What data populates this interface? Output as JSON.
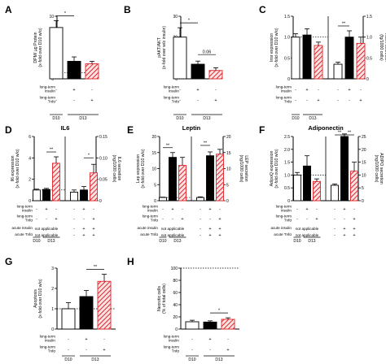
{
  "figure_label": "Figure",
  "colors": {
    "white_bar": "#ffffff",
    "black_bar": "#000000",
    "hatch": "#e3242b",
    "hatch_bg": "#fbe3e3"
  },
  "chart_data": [
    {
      "id": "A",
      "type": "bar",
      "panel_letter": "A",
      "title": "",
      "ylabel": "DPM/ µg Protein\n(x-fold over D10 w/o)",
      "ylim": [
        0,
        10
      ],
      "yticks": [
        0,
        2,
        4,
        6,
        8,
        10
      ],
      "bars": [
        {
          "style": "white",
          "value": 8.2,
          "err": 1.1
        },
        {
          "style": "black",
          "value": 2.8,
          "err": 0.7
        },
        {
          "style": "hatch",
          "value": 2.4,
          "err": 0.4
        }
      ],
      "ref_line": 1,
      "sig": [
        {
          "from": 0,
          "to": 1,
          "label": "*"
        }
      ],
      "rows": [
        {
          "label": "long-term\ninsulin",
          "marks": [
            "-",
            "+",
            "-"
          ]
        },
        {
          "label": "long-term\nTnfα",
          "marks": [
            "-",
            "-",
            "+"
          ]
        }
      ],
      "groups": [
        {
          "label": "D10",
          "bars": [
            0
          ]
        },
        {
          "label": "D13",
          "bars": [
            1,
            2
          ]
        }
      ]
    },
    {
      "id": "B",
      "type": "bar",
      "panel_letter": "B",
      "title": "",
      "ylabel": "pAKT/AKT\n(x-fold over w/o insulin)",
      "ylim": [
        0,
        30
      ],
      "yticks": [
        0,
        10,
        20,
        30
      ],
      "bars": [
        {
          "style": "white",
          "value": 20,
          "err": 4.5
        },
        {
          "style": "black",
          "value": 7,
          "err": 1.5
        },
        {
          "style": "hatch",
          "value": 4,
          "err": 1.3
        }
      ],
      "ref_line": null,
      "sig": [
        {
          "from": 0,
          "to": 1,
          "label": "*"
        },
        {
          "from": 1,
          "to": 2,
          "label": "0.06"
        }
      ],
      "rows": [
        {
          "label": "long-term\ninsulin",
          "marks": [
            "-",
            "+",
            "-"
          ]
        },
        {
          "label": "long-term\nTnfα",
          "marks": [
            "-",
            "-",
            "+"
          ]
        }
      ],
      "groups": [
        {
          "label": "D10",
          "bars": [
            0
          ]
        },
        {
          "label": "D13",
          "bars": [
            1,
            2
          ]
        }
      ]
    },
    {
      "id": "C",
      "type": "bar",
      "panel_letter": "C",
      "title": "",
      "ylabel": "Insr expression\n(x-fold over D10 w/o)",
      "y2label": "INSR secretion\n(fg/1000 cells)",
      "ylim": [
        0,
        1.5
      ],
      "yticks": [
        0,
        0.5,
        1.0,
        1.5
      ],
      "y2lim": [
        0,
        1.5
      ],
      "y2ticks": [
        0,
        0.5,
        1.0,
        1.5
      ],
      "divider": true,
      "bars": [
        {
          "style": "white",
          "value": 1.0,
          "err": 0.08
        },
        {
          "style": "black",
          "value": 1.05,
          "err": 0.15
        },
        {
          "style": "hatch",
          "value": 0.8,
          "err": 0.08
        },
        {
          "style": "white",
          "value": 0.35,
          "err": 0.05,
          "axis": "right"
        },
        {
          "style": "black",
          "value": 1.0,
          "err": 0.15,
          "axis": "right"
        },
        {
          "style": "hatch",
          "value": 0.85,
          "err": 0.15,
          "axis": "right"
        }
      ],
      "ref_line": 1,
      "sig": [
        {
          "from": 3,
          "to": 4,
          "label": "**"
        }
      ],
      "rows": [
        {
          "label": "long-term\ninsulin",
          "marks": [
            "-",
            "+",
            "-",
            "-",
            "+",
            "-"
          ]
        },
        {
          "label": "long-term\nTnfα",
          "marks": [
            "-",
            "-",
            "+",
            "-",
            "-",
            "+"
          ]
        }
      ],
      "groups": [
        {
          "label": "D10",
          "bars": [
            0
          ]
        },
        {
          "label": "D13",
          "bars": [
            1,
            2
          ]
        }
      ]
    },
    {
      "id": "D",
      "type": "bar",
      "panel_letter": "D",
      "title": "IL6",
      "ylabel": "Il6 expression\n(x-fold over D10 w/o)",
      "y2label": "IL6 secretion\n(ng/1000 cells)",
      "ylim": [
        0,
        6
      ],
      "yticks": [
        0,
        2,
        4,
        6
      ],
      "y2lim": [
        0,
        0.15
      ],
      "y2ticks": [
        0,
        0.05,
        0.1,
        0.15
      ],
      "divider": true,
      "bars": [
        {
          "style": "white",
          "value": 1.0,
          "err": 0.08
        },
        {
          "style": "black",
          "value": 1.05,
          "err": 0.1
        },
        {
          "style": "hatch",
          "value": 3.5,
          "err": 0.6
        },
        {
          "style": "white",
          "value": 0.02,
          "err": 0.005,
          "axis": "right"
        },
        {
          "style": "black",
          "value": 0.025,
          "err": 0.008,
          "axis": "right"
        },
        {
          "style": "hatch",
          "value": 0.065,
          "err": 0.02,
          "axis": "right"
        }
      ],
      "ref_line": 1,
      "sig": [
        {
          "from": 1,
          "to": 2,
          "label": "**"
        },
        {
          "from": 4,
          "to": 5,
          "label": "*"
        }
      ],
      "rows": [
        {
          "label": "long-term\ninsulin",
          "marks": [
            "-",
            "+",
            "-",
            "-",
            "+",
            "-"
          ]
        },
        {
          "label": "long-term\nTnfα",
          "marks": [
            "-",
            "-",
            "+",
            "-",
            "-",
            "+"
          ]
        },
        {
          "label": "acute insulin",
          "marks": [
            "na",
            "",
            "",
            "-",
            "+",
            "+"
          ]
        },
        {
          "label": "acute Tnfα",
          "marks": [
            "na",
            "",
            "",
            "-",
            "+",
            "+"
          ]
        }
      ],
      "na_text": "not applicable",
      "groups": [
        {
          "label": "D10",
          "bars": [
            0
          ]
        },
        {
          "label": "D13",
          "bars": [
            1,
            2
          ]
        }
      ]
    },
    {
      "id": "E",
      "type": "bar",
      "panel_letter": "E",
      "title": "Leptin",
      "ylabel": "Lep expression\n(x-fold over D10 w/o)",
      "y2label": "LEP secretion\n(ng/1000 cells)",
      "ylim": [
        0,
        20
      ],
      "yticks": [
        0,
        5,
        10,
        15,
        20
      ],
      "y2lim": [
        0,
        20
      ],
      "y2ticks": [
        0,
        5,
        10,
        15,
        20
      ],
      "divider": true,
      "bars": [
        {
          "style": "white",
          "value": 1.0,
          "err": 0.1
        },
        {
          "style": "black",
          "value": 13.5,
          "err": 1.5
        },
        {
          "style": "hatch",
          "value": 11,
          "err": 2.5
        },
        {
          "style": "white",
          "value": 1.0,
          "err": 0.2,
          "axis": "right"
        },
        {
          "style": "black",
          "value": 14,
          "err": 1.2,
          "axis": "right"
        },
        {
          "style": "hatch",
          "value": 14.5,
          "err": 1.5,
          "axis": "right"
        }
      ],
      "ref_line": 1,
      "sig": [
        {
          "from": 0,
          "to": 1,
          "label": "**"
        },
        {
          "from": 3,
          "to": 4,
          "label": "**"
        }
      ],
      "rows": [
        {
          "label": "long-term\ninsulin",
          "marks": [
            "-",
            "+",
            "-",
            "-",
            "+",
            "-"
          ]
        },
        {
          "label": "long-term\nTnfα",
          "marks": [
            "-",
            "-",
            "+",
            "-",
            "-",
            "+"
          ]
        },
        {
          "label": "acute insulin",
          "marks": [
            "na",
            "",
            "",
            "-",
            "+",
            "+"
          ]
        },
        {
          "label": "acute Tnfα",
          "marks": [
            "na",
            "",
            "",
            "-",
            "+",
            "+"
          ]
        }
      ],
      "na_text": "not applicable",
      "groups": [
        {
          "label": "D10",
          "bars": [
            0
          ]
        },
        {
          "label": "D13",
          "bars": [
            1,
            2
          ]
        }
      ]
    },
    {
      "id": "F",
      "type": "bar",
      "panel_letter": "F",
      "title": "Adiponectin",
      "ylabel": "AdipoQ expression\n(x-fold over D10 w/o)",
      "y2label": "ADIPO secretion\n(ng/1000 cells)",
      "ylim": [
        0,
        2.5
      ],
      "yticks": [
        0,
        0.5,
        1.0,
        1.5,
        2.0,
        2.5
      ],
      "y2lim": [
        0,
        25
      ],
      "y2ticks": [
        0,
        5,
        10,
        15,
        20,
        25
      ],
      "divider": true,
      "bars": [
        {
          "style": "white",
          "value": 1.0,
          "err": 0.1
        },
        {
          "style": "black",
          "value": 1.35,
          "err": 0.4
        },
        {
          "style": "hatch",
          "value": 0.75,
          "err": 0.1
        },
        {
          "style": "white",
          "value": 6,
          "err": 0.5,
          "axis": "right"
        },
        {
          "style": "black",
          "value": 25,
          "err": 1.0,
          "axis": "right"
        },
        {
          "style": "hatch",
          "value": 11.5,
          "err": 3.5,
          "axis": "right"
        }
      ],
      "ref_line": 1,
      "sig": [
        {
          "from": 3,
          "to": 4,
          "label": "**"
        },
        {
          "from": 4,
          "to": 5,
          "label": "**"
        }
      ],
      "rows": [
        {
          "label": "long-term\ninsulin",
          "marks": [
            "-",
            "+",
            "-",
            "-",
            "+",
            "-"
          ]
        },
        {
          "label": "long-term\nTnfα",
          "marks": [
            "-",
            "-",
            "+",
            "-",
            "-",
            "+"
          ]
        },
        {
          "label": "acute insulin",
          "marks": [
            "na",
            "",
            "",
            "-",
            "+",
            "+"
          ]
        },
        {
          "label": "acute Tnfα",
          "marks": [
            "na",
            "",
            "",
            "-",
            "+",
            "+"
          ]
        }
      ],
      "na_text": "not applicable",
      "groups": [
        {
          "label": "D10",
          "bars": [
            0
          ]
        },
        {
          "label": "D13",
          "bars": [
            1,
            2
          ]
        }
      ]
    },
    {
      "id": "G",
      "type": "bar",
      "panel_letter": "G",
      "title": "",
      "ylabel": "Apoptosis\n(x-fold over D10 w/o)",
      "ylim": [
        0,
        3
      ],
      "yticks": [
        0,
        1,
        2,
        3
      ],
      "bars": [
        {
          "style": "white",
          "value": 1.0,
          "err": 0.3
        },
        {
          "style": "black",
          "value": 1.6,
          "err": 0.3
        },
        {
          "style": "hatch",
          "value": 2.35,
          "err": 0.35
        }
      ],
      "ref_line": 1,
      "sig": [
        {
          "from": 1,
          "to": 2,
          "label": "**"
        }
      ],
      "rows": [
        {
          "label": "long-term\ninsulin",
          "marks": [
            "-",
            "+",
            "-"
          ]
        },
        {
          "label": "long-term\nTnfα",
          "marks": [
            "-",
            "-",
            "+"
          ]
        }
      ],
      "groups": [
        {
          "label": "D10",
          "bars": [
            0
          ]
        },
        {
          "label": "D13",
          "bars": [
            1,
            2
          ]
        }
      ]
    },
    {
      "id": "H",
      "type": "bar",
      "panel_letter": "H",
      "title": "",
      "ylabel": "Necrotic cells\n(% of total cells)",
      "ylim": [
        0,
        100
      ],
      "yticks": [
        0,
        20,
        40,
        60,
        80,
        100
      ],
      "bars": [
        {
          "style": "white",
          "value": 12,
          "err": 2.5
        },
        {
          "style": "black",
          "value": 11.5,
          "err": 2.0
        },
        {
          "style": "hatch",
          "value": 16,
          "err": 2.5
        }
      ],
      "ref_line": 100,
      "sig": [
        {
          "from": 1,
          "to": 2,
          "label": "*"
        }
      ],
      "rows": [
        {
          "label": "long-term\ninsulin",
          "marks": [
            "-",
            "+",
            "-"
          ]
        },
        {
          "label": "long-term\nTnfα",
          "marks": [
            "-",
            "-",
            "+"
          ]
        }
      ],
      "groups": [
        {
          "label": "D10",
          "bars": [
            0
          ]
        },
        {
          "label": "D13",
          "bars": [
            1,
            2
          ]
        }
      ]
    }
  ]
}
